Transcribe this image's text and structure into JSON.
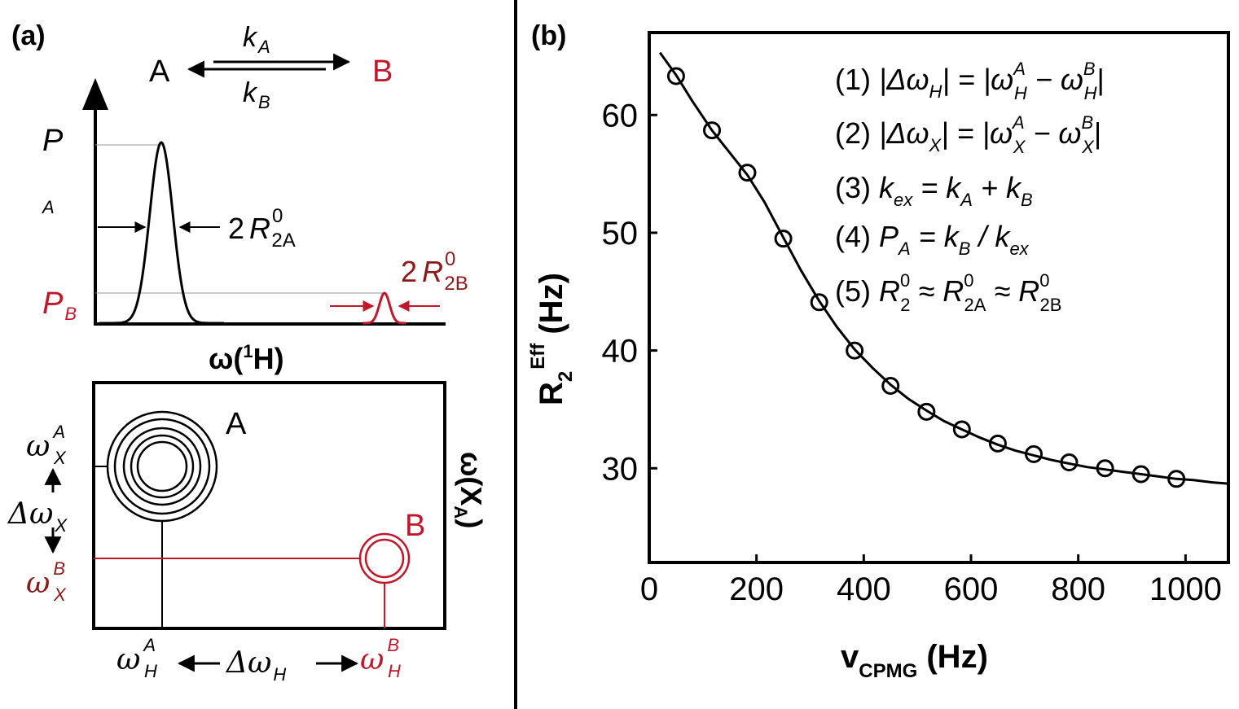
{
  "colors": {
    "ink": "#000000",
    "state_b": "#c0182a",
    "state_b_dark": "#8b1a1a"
  },
  "panel_a": {
    "label": "(a)",
    "exchange": {
      "state_a": "A",
      "state_b": "B",
      "rate_forward": "k",
      "rate_forward_sub": "A",
      "rate_backward": "k",
      "rate_backward_sub": "B"
    },
    "spectrum": {
      "y_label": "P",
      "y_label_sub": "A",
      "pb_label": "P",
      "pb_label_sub": "B",
      "width_a_prefix": "2",
      "width_a_symbol": "R",
      "width_a_sup": "0",
      "width_a_sub": "2A",
      "width_b_prefix": "2",
      "width_b_symbol": "R",
      "width_b_sup": "0",
      "width_b_sub": "2B",
      "x_label_pre": "ω(",
      "x_label_sup": "1",
      "x_label_post": "H)"
    },
    "map2d": {
      "peak_a": "A",
      "peak_b": "B",
      "wx_a": "ω",
      "wx_a_sup": "A",
      "wx_a_sub": "X",
      "dwx": "Δω",
      "dwx_sub": "X",
      "wx_b": "ω",
      "wx_b_sup": "B",
      "wx_b_sub": "X",
      "wh_a": "ω",
      "wh_a_sup": "A",
      "wh_a_sub": "H",
      "dwh": "Δω",
      "dwh_sub": "H",
      "wh_b": "ω",
      "wh_b_sup": "B",
      "wh_b_sub": "H",
      "y_label": "ω(X",
      "y_label_sub": "A",
      "y_label_close": ")"
    }
  },
  "panel_b": {
    "label": "(b)",
    "equations": {
      "e1_num": "(1)",
      "e1_lhs": "|Δω",
      "e1_lhs_sub": "H",
      "e1_mid": "| = |ω",
      "e1_a_sup": "A",
      "e1_a_sub": "H",
      "e1_minus": " − ω",
      "e1_b_sup": "B",
      "e1_b_sub": "H",
      "e1_close": "|",
      "e2_num": "(2)",
      "e2_lhs": "|Δω",
      "e2_lhs_sub": "X",
      "e2_mid": "| = |ω",
      "e2_a_sup": "A",
      "e2_a_sub": "X",
      "e2_minus": " − ω",
      "e2_b_sup": "B",
      "e2_b_sub": "X",
      "e2_close": "|",
      "e3_num": "(3)",
      "e3_k1": "k",
      "e3_k1_sub": "ex",
      "e3_eq": " = k",
      "e3_k2_sub": "A",
      "e3_plus": " + k",
      "e3_k3_sub": "B",
      "e4_num": "(4)",
      "e4_p": "P",
      "e4_p_sub": "A",
      "e4_eq": " = k",
      "e4_k_sub": "B",
      "e4_div": " / k",
      "e4_k2_sub": "ex",
      "e5_num": "(5)",
      "e5_r": "R",
      "e5_r_sup": "0",
      "e5_r_sub": "2",
      "e5_approx1": " ≈ R",
      "e5_r2_sup": "0",
      "e5_r2_sub": "2A",
      "e5_approx2": " ≈ R",
      "e5_r3_sup": "0",
      "e5_r3_sub": "2B"
    }
  },
  "chart_data": {
    "type": "scatter",
    "title": "",
    "xlabel": "v",
    "xlabel_sub": "CPMG",
    "xlabel_unit": " (Hz)",
    "ylabel": "R",
    "ylabel_sub": "2",
    "ylabel_sup": "Eff",
    "ylabel_unit": " (Hz)",
    "xlim": [
      0,
      1080
    ],
    "ylim": [
      22,
      67
    ],
    "x_ticks": [
      0,
      200,
      400,
      600,
      800,
      1000
    ],
    "y_ticks": [
      30,
      40,
      50,
      60
    ],
    "series": [
      {
        "type": "scatter",
        "x": [
          50,
          117,
          183,
          250,
          317,
          383,
          450,
          517,
          583,
          650,
          717,
          783,
          850,
          917,
          983
        ],
        "y": [
          63.3,
          58.7,
          55.1,
          49.5,
          44.1,
          40.0,
          37.0,
          34.8,
          33.3,
          32.1,
          31.2,
          30.5,
          30.0,
          29.5,
          29.1
        ]
      },
      {
        "type": "line",
        "x": [
          20,
          50,
          80,
          117,
          150,
          183,
          215,
          250,
          283,
          317,
          350,
          383,
          417,
          450,
          483,
          517,
          550,
          583,
          617,
          650,
          683,
          717,
          750,
          783,
          817,
          850,
          883,
          917,
          950,
          983,
          1015,
          1050,
          1080
        ],
        "y": [
          65.3,
          63.4,
          61.2,
          58.7,
          56.8,
          54.9,
          52.6,
          49.6,
          46.8,
          44.2,
          42.0,
          40.1,
          38.5,
          37.1,
          35.9,
          34.9,
          34.0,
          33.3,
          32.6,
          32.0,
          31.5,
          31.1,
          30.7,
          30.4,
          30.1,
          29.9,
          29.7,
          29.5,
          29.3,
          29.1,
          29.0,
          28.8,
          28.7
        ]
      }
    ]
  }
}
